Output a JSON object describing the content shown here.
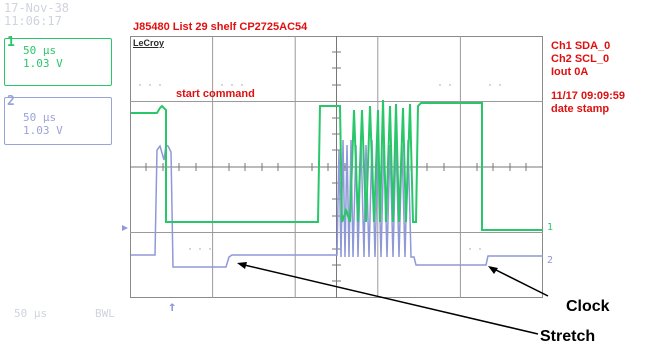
{
  "header": {
    "date": "17-Nov-38",
    "time": "11:06:17",
    "title": "J85480 List 29 shelf CP2725AC54"
  },
  "channels": [
    {
      "number": "1",
      "timebase": "50 µs",
      "volts": "1.03 V",
      "color": "#29c76a"
    },
    {
      "number": "2",
      "timebase": "50 µs",
      "volts": "1.03 V",
      "color": "#9aa3d8"
    }
  ],
  "scope": {
    "brand": "LeCroy",
    "start_annotation": "start command",
    "trace1_marker": "1",
    "trace2_marker": "2",
    "trigger_marker": "↑"
  },
  "right_info": {
    "line1": "Ch1 SDA_0",
    "line2": "Ch2 SCL_0",
    "line3": "Iout 0A",
    "line4": "11/17 09:09:59",
    "line5": "date stamp"
  },
  "bottom": {
    "timebase": "50 µs",
    "bwl": "BWL"
  },
  "labels": {
    "clock": "Clock",
    "stretch": "Stretch"
  },
  "colors": {
    "sda": "#29c76a",
    "scl": "#8f98d8",
    "annotation": "#e01010",
    "grid": "#8a8a8a"
  }
}
